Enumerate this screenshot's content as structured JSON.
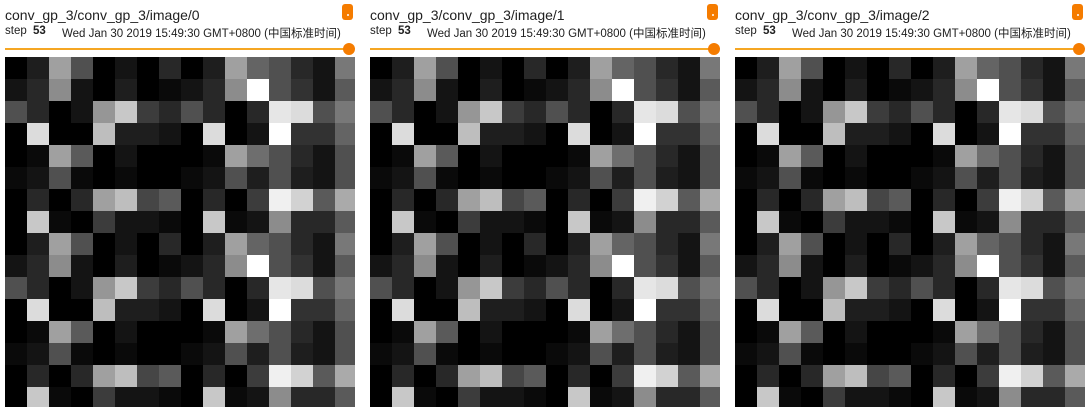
{
  "colors": {
    "accent": "#f57c00",
    "slider_track": "#f5a623",
    "text": "#212121"
  },
  "cards": [
    {
      "title": "conv_gp_3/conv_gp_3/image/0",
      "step_label": "step",
      "step_value": "53",
      "timestamp": "Wed Jan 30 2019 15:49:30 GMT+0800 (中国标准时间)",
      "expand_icon": "expand-icon",
      "slider_position": 1.0
    },
    {
      "title": "conv_gp_3/conv_gp_3/image/1",
      "step_label": "step",
      "step_value": "53",
      "timestamp": "Wed Jan 30 2019 15:49:30 GMT+0800 (中国标准时间)",
      "expand_icon": "expand-icon",
      "slider_position": 1.0
    },
    {
      "title": "conv_gp_3/conv_gp_3/image/2",
      "step_label": "step",
      "step_value": "53",
      "timestamp": "Wed Jan 30 2019 15:49:30 GMT+0800 (中国标准时间)",
      "expand_icon": "expand-icon",
      "slider_position": 1.0
    }
  ]
}
